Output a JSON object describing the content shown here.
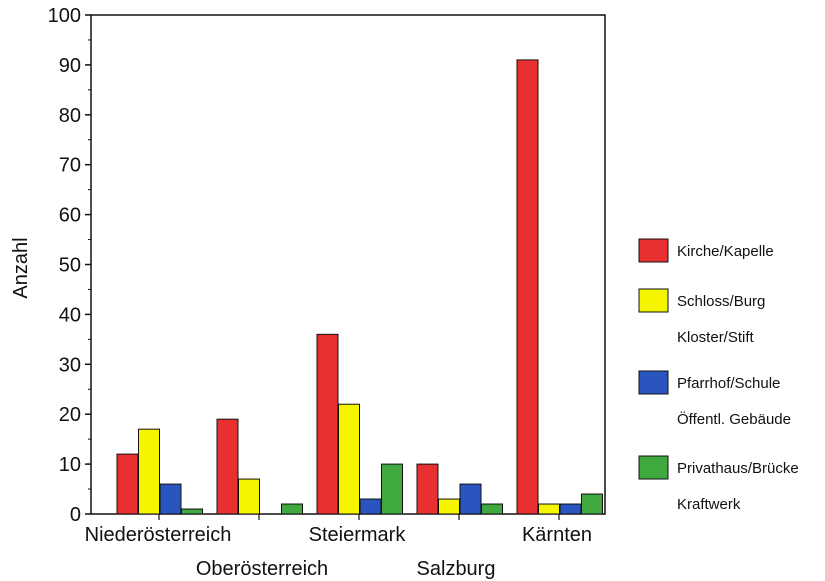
{
  "chart_data": {
    "type": "bar",
    "title": "",
    "xlabel": "",
    "ylabel": "Anzahl",
    "ylim": [
      0,
      100
    ],
    "yticks": [
      0,
      10,
      20,
      30,
      40,
      50,
      60,
      70,
      80,
      90,
      100
    ],
    "grid": false,
    "legend_position": "right",
    "categories": [
      "Niederösterreich",
      "Oberösterreich",
      "Steiermark",
      "Salzburg",
      "Kärnten"
    ],
    "series": [
      {
        "name": "Kirche/Kapelle",
        "color": "#e83030",
        "values": [
          12,
          19,
          36,
          10,
          91
        ]
      },
      {
        "name": "Schloss/Burg Kloster/Stift",
        "color": "#f5f500",
        "values": [
          17,
          7,
          22,
          3,
          2
        ]
      },
      {
        "name": "Pfarrhof/Schule Öffentl. Gebäude",
        "color": "#2a55c0",
        "values": [
          6,
          0,
          3,
          6,
          2
        ]
      },
      {
        "name": "Privathaus/Brücke Kraftwerk",
        "color": "#3fa83f",
        "values": [
          1,
          2,
          10,
          2,
          4
        ]
      }
    ]
  },
  "legend": [
    {
      "line1": "Kirche/Kapelle",
      "line2": ""
    },
    {
      "line1": "Schloss/Burg",
      "line2": "Kloster/Stift"
    },
    {
      "line1": "Pfarrhof/Schule",
      "line2": "Öffentl. Gebäude"
    },
    {
      "line1": "Privathaus/Brücke",
      "line2": "Kraftwerk"
    }
  ]
}
